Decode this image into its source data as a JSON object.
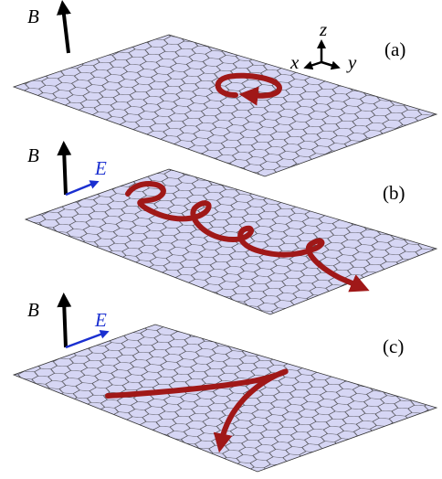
{
  "panels": [
    {
      "label": "(a)",
      "field_b": "B"
    },
    {
      "label": "(b)",
      "field_b": "B",
      "field_e": "E"
    },
    {
      "label": "(c)",
      "field_b": "B",
      "field_e": "E"
    }
  ],
  "axes": {
    "z": "z",
    "x": "x",
    "y": "y"
  }
}
